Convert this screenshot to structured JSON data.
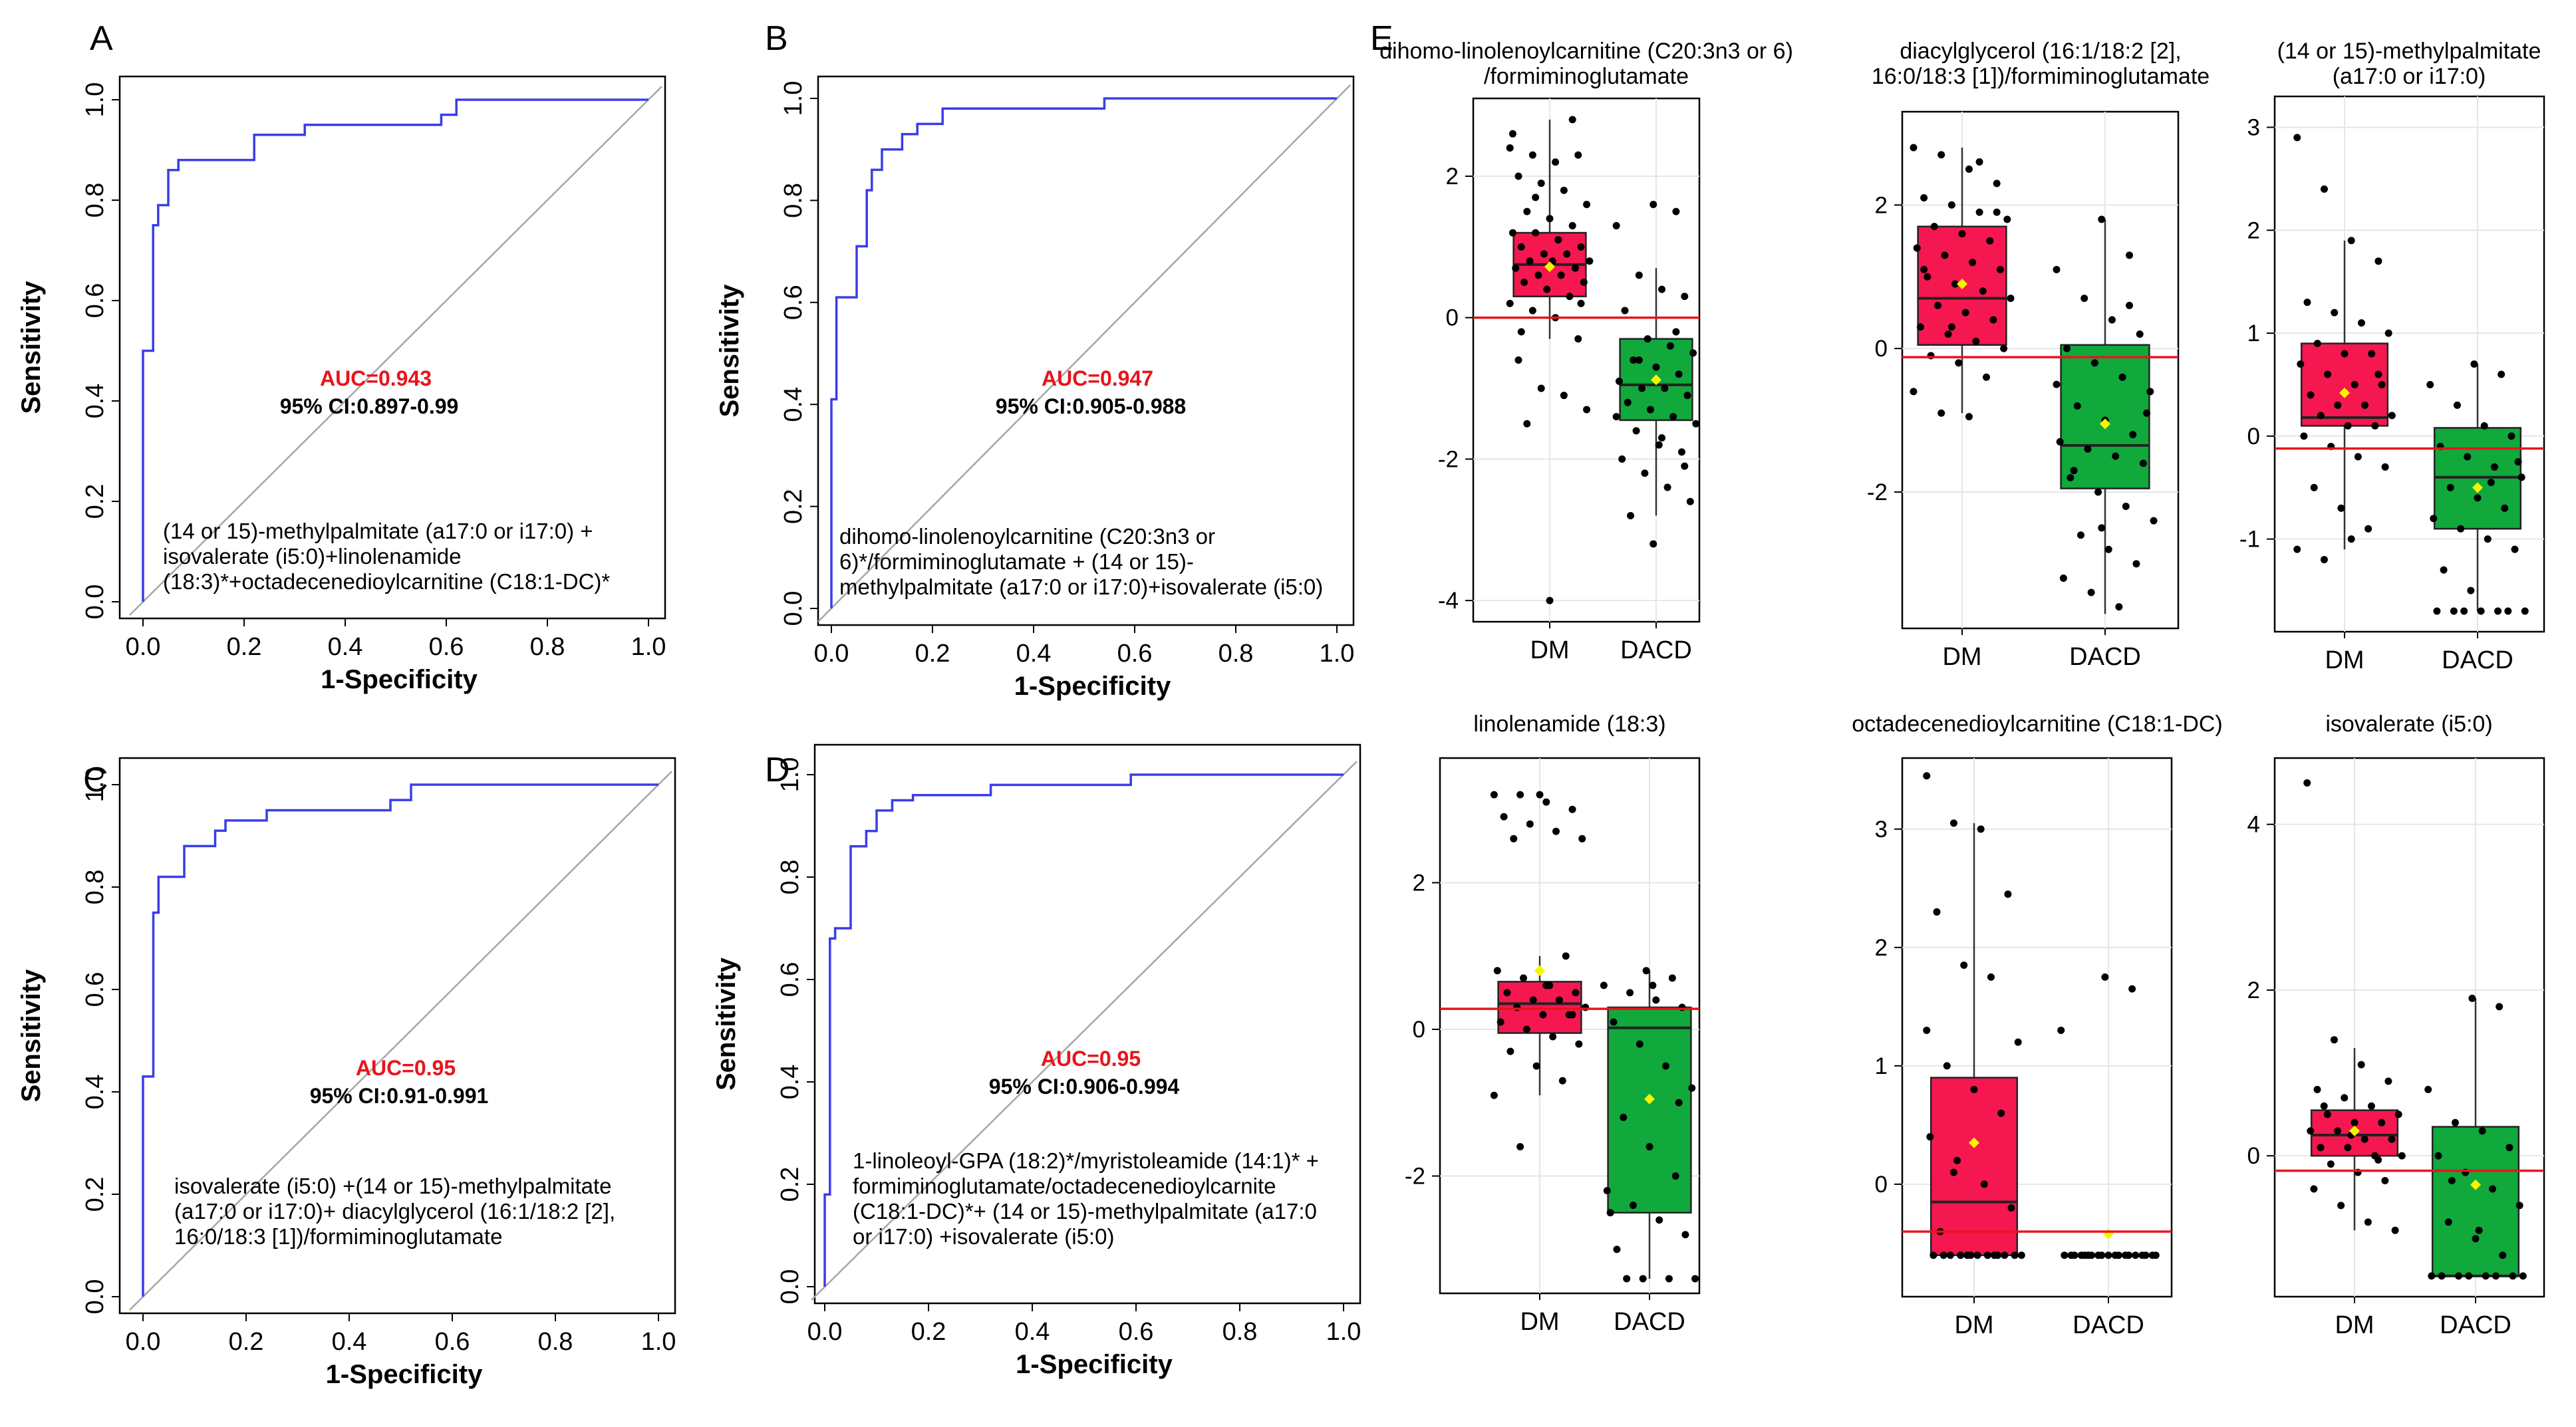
{
  "chart_data": [
    {
      "type": "line",
      "panel": "A",
      "xlabel": "1-Specificity",
      "ylabel": "Sensitivity",
      "xlim": [
        0,
        1
      ],
      "ylim": [
        0,
        1
      ],
      "xticks": [
        "0.0",
        "0.2",
        "0.4",
        "0.6",
        "0.8",
        "1.0"
      ],
      "yticks": [
        "0.0",
        "0.2",
        "0.4",
        "0.6",
        "0.8",
        "1.0"
      ],
      "auc": "AUC=0.943",
      "ci": "95% CI:0.897-0.99",
      "formula": [
        "(14 or 15)-methylpalmitate (a17:0 or i17:0) +",
        "isovalerate (i5:0)+linolenamide",
        "(18:3)*+octadecenedioylcarnitine (C18:1-DC)*"
      ],
      "roc": [
        [
          0,
          0
        ],
        [
          0,
          0.5
        ],
        [
          0.02,
          0.5
        ],
        [
          0.02,
          0.75
        ],
        [
          0.03,
          0.75
        ],
        [
          0.03,
          0.79
        ],
        [
          0.05,
          0.79
        ],
        [
          0.05,
          0.86
        ],
        [
          0.07,
          0.86
        ],
        [
          0.07,
          0.88
        ],
        [
          0.22,
          0.88
        ],
        [
          0.22,
          0.93
        ],
        [
          0.32,
          0.93
        ],
        [
          0.32,
          0.95
        ],
        [
          0.59,
          0.95
        ],
        [
          0.59,
          0.97
        ],
        [
          0.62,
          0.97
        ],
        [
          0.62,
          1.0
        ],
        [
          1,
          1
        ]
      ]
    },
    {
      "type": "line",
      "panel": "B",
      "xlabel": "1-Specificity",
      "ylabel": "Sensitivity",
      "xlim": [
        0,
        1
      ],
      "ylim": [
        0,
        1
      ],
      "xticks": [
        "0.0",
        "0.2",
        "0.4",
        "0.6",
        "0.8",
        "1.0"
      ],
      "yticks": [
        "0.0",
        "0.2",
        "0.4",
        "0.6",
        "0.8",
        "1.0"
      ],
      "auc": "AUC=0.947",
      "ci": "95% CI:0.905-0.988",
      "formula": [
        "dihomo-linolenoylcarnitine (C20:3n3 or",
        "6)*/formiminoglutamate + (14 or 15)-",
        "methylpalmitate (a17:0 or i17:0)+isovalerate (i5:0)"
      ],
      "roc": [
        [
          0,
          0
        ],
        [
          0,
          0.41
        ],
        [
          0.01,
          0.41
        ],
        [
          0.01,
          0.61
        ],
        [
          0.05,
          0.61
        ],
        [
          0.05,
          0.71
        ],
        [
          0.07,
          0.71
        ],
        [
          0.07,
          0.82
        ],
        [
          0.08,
          0.82
        ],
        [
          0.08,
          0.86
        ],
        [
          0.1,
          0.86
        ],
        [
          0.1,
          0.9
        ],
        [
          0.14,
          0.9
        ],
        [
          0.14,
          0.93
        ],
        [
          0.17,
          0.93
        ],
        [
          0.17,
          0.95
        ],
        [
          0.22,
          0.95
        ],
        [
          0.22,
          0.98
        ],
        [
          0.54,
          0.98
        ],
        [
          0.54,
          1.0
        ],
        [
          1,
          1
        ]
      ]
    },
    {
      "type": "line",
      "panel": "C",
      "xlabel": "1-Specificity",
      "ylabel": "Sensitivity",
      "xlim": [
        0,
        1
      ],
      "ylim": [
        0,
        1
      ],
      "xticks": [
        "0.0",
        "0.2",
        "0.4",
        "0.6",
        "0.8",
        "1.0"
      ],
      "yticks": [
        "0.0",
        "0.2",
        "0.4",
        "0.6",
        "0.8",
        "1.0"
      ],
      "auc": "AUC=0.95",
      "ci": "95% CI:0.91-0.991",
      "formula": [
        "isovalerate (i5:0) +(14 or 15)-methylpalmitate",
        "(a17:0 or i17:0)+ diacylglycerol (16:1/18:2 [2],",
        "16:0/18:3 [1])/formiminoglutamate"
      ],
      "roc": [
        [
          0,
          0
        ],
        [
          0,
          0.43
        ],
        [
          0.02,
          0.43
        ],
        [
          0.02,
          0.75
        ],
        [
          0.03,
          0.75
        ],
        [
          0.03,
          0.82
        ],
        [
          0.08,
          0.82
        ],
        [
          0.08,
          0.88
        ],
        [
          0.14,
          0.88
        ],
        [
          0.14,
          0.91
        ],
        [
          0.16,
          0.91
        ],
        [
          0.16,
          0.93
        ],
        [
          0.24,
          0.93
        ],
        [
          0.24,
          0.95
        ],
        [
          0.48,
          0.95
        ],
        [
          0.48,
          0.97
        ],
        [
          0.52,
          0.97
        ],
        [
          0.52,
          1.0
        ],
        [
          1,
          1
        ]
      ]
    },
    {
      "type": "line",
      "panel": "D",
      "xlabel": "1-Specificity",
      "ylabel": "Sensitivity",
      "xlim": [
        0,
        1
      ],
      "ylim": [
        0,
        1
      ],
      "xticks": [
        "0.0",
        "0.2",
        "0.4",
        "0.6",
        "0.8",
        "1.0"
      ],
      "yticks": [
        "0.0",
        "0.2",
        "0.4",
        "0.6",
        "0.8",
        "1.0"
      ],
      "auc": "AUC=0.95",
      "ci": "95% CI:0.906-0.994",
      "formula": [
        "1-linoleoyl-GPA (18:2)*/myristoleamide (14:1)* +",
        "formiminoglutamate/octadecenedioylcarnite",
        "(C18:1-DC)*+ (14 or 15)-methylpalmitate (a17:0",
        "or i17:0) +isovalerate (i5:0)"
      ],
      "roc": [
        [
          0,
          0
        ],
        [
          0,
          0.18
        ],
        [
          0.01,
          0.18
        ],
        [
          0.01,
          0.68
        ],
        [
          0.02,
          0.68
        ],
        [
          0.02,
          0.7
        ],
        [
          0.05,
          0.7
        ],
        [
          0.05,
          0.86
        ],
        [
          0.08,
          0.86
        ],
        [
          0.08,
          0.89
        ],
        [
          0.1,
          0.89
        ],
        [
          0.1,
          0.93
        ],
        [
          0.13,
          0.93
        ],
        [
          0.13,
          0.95
        ],
        [
          0.17,
          0.95
        ],
        [
          0.17,
          0.96
        ],
        [
          0.32,
          0.96
        ],
        [
          0.32,
          0.98
        ],
        [
          0.59,
          0.98
        ],
        [
          0.59,
          1.0
        ],
        [
          1,
          1
        ]
      ]
    },
    {
      "type": "box",
      "panel": "E",
      "title": [
        "dihomo-linolenoylcarnitine (C20:3n3 or 6)",
        "/formiminoglutamate"
      ],
      "categories": [
        "DM",
        "DACD"
      ],
      "ylim": [
        -4.3,
        3.1
      ],
      "yticks": [
        -4,
        -2,
        0,
        2
      ],
      "threshold": 0,
      "boxes": [
        {
          "q1": 0.3,
          "median": 0.75,
          "q3": 1.2,
          "lo": -0.3,
          "hi": 2.8,
          "mean": 0.72,
          "color": "#f5174f",
          "points": [
            2.4,
            2.3,
            2.2,
            2.3,
            2.0,
            1.9,
            1.8,
            1.6,
            1.5,
            1.4,
            1.3,
            1.2,
            1.2,
            1.1,
            1.0,
            1.0,
            0.9,
            0.9,
            0.8,
            0.8,
            0.8,
            0.7,
            0.7,
            0.6,
            0.6,
            0.5,
            0.5,
            0.4,
            0.3,
            0.2,
            0.1,
            0.0,
            -0.3,
            -0.6,
            -1.0,
            -1.1,
            -1.3,
            -1.5,
            -4.0,
            2.8,
            2.6,
            1.7,
            1.1,
            0.2,
            -0.2
          ]
        },
        {
          "q1": -1.45,
          "median": -0.95,
          "q3": -0.3,
          "lo": -2.8,
          "hi": 0.7,
          "mean": -0.88,
          "color": "#11a83c",
          "points": [
            1.6,
            1.5,
            1.3,
            0.6,
            0.4,
            0.3,
            0.1,
            -0.3,
            -0.4,
            -0.5,
            -0.6,
            -0.7,
            -0.8,
            -0.9,
            -1.0,
            -1.0,
            -1.1,
            -1.2,
            -1.3,
            -1.4,
            -1.5,
            -1.6,
            -1.8,
            -1.9,
            -2.0,
            -2.2,
            -2.4,
            -2.6,
            -2.8,
            -3.2,
            -0.2,
            -1.4,
            -0.6,
            -1.7,
            -2.1
          ]
        }
      ]
    },
    {
      "type": "box",
      "panel": "E",
      "title": [
        "diacylglycerol (16:1/18:2 [2],",
        "16:0/18:3 [1])/formiminoglutamate"
      ],
      "categories": [
        "DM",
        "DACD"
      ],
      "ylim": [
        -3.9,
        3.3
      ],
      "yticks": [
        -2,
        0,
        2
      ],
      "threshold": -0.12,
      "boxes": [
        {
          "q1": 0.05,
          "median": 0.7,
          "q3": 1.7,
          "lo": -0.9,
          "hi": 2.8,
          "mean": 0.9,
          "color": "#f5174f",
          "points": [
            2.8,
            2.7,
            2.5,
            2.3,
            2.1,
            2.0,
            1.9,
            1.8,
            1.7,
            1.6,
            1.5,
            1.4,
            1.3,
            1.2,
            1.1,
            1.0,
            0.9,
            0.8,
            0.7,
            0.6,
            0.5,
            0.4,
            0.3,
            0.2,
            0.1,
            0.0,
            -0.1,
            -0.2,
            -0.4,
            -0.6,
            -0.9,
            -0.95,
            1.9,
            1.1,
            0.3,
            2.6
          ]
        },
        {
          "q1": -1.95,
          "median": -1.35,
          "q3": 0.05,
          "lo": -3.7,
          "hi": 1.8,
          "mean": -1.05,
          "color": "#11a83c",
          "points": [
            1.8,
            1.3,
            1.1,
            0.7,
            0.4,
            0.2,
            0.0,
            -0.2,
            -0.4,
            -0.6,
            -0.8,
            -1.0,
            -1.2,
            -1.3,
            -1.4,
            -1.5,
            -1.6,
            -1.8,
            -2.0,
            -2.2,
            -2.4,
            -2.6,
            -2.8,
            -3.0,
            -3.2,
            -3.4,
            -3.6,
            -0.9,
            -1.7,
            -2.5,
            0.6,
            -0.5
          ]
        }
      ]
    },
    {
      "type": "box",
      "panel": "E",
      "title": [
        "(14 or 15)-methylpalmitate",
        "(a17:0 or i17:0)"
      ],
      "categories": [
        "DM",
        "DACD"
      ],
      "ylim": [
        -1.9,
        3.3
      ],
      "yticks": [
        -1,
        0,
        1,
        2,
        3
      ],
      "threshold": -0.12,
      "boxes": [
        {
          "q1": 0.1,
          "median": 0.18,
          "q3": 0.9,
          "lo": -1.1,
          "hi": 1.9,
          "mean": 0.42,
          "color": "#f5174f",
          "points": [
            2.9,
            2.4,
            1.9,
            1.7,
            1.3,
            1.2,
            1.1,
            1.0,
            0.9,
            0.8,
            0.8,
            0.7,
            0.6,
            0.5,
            0.5,
            0.4,
            0.3,
            0.3,
            0.2,
            0.2,
            0.1,
            0.1,
            0.0,
            -0.1,
            -0.2,
            -0.3,
            -0.5,
            -0.7,
            -0.9,
            -1.1,
            -1.2,
            -1.0,
            0.6
          ]
        },
        {
          "q1": -0.9,
          "median": -0.4,
          "q3": 0.08,
          "lo": -1.7,
          "hi": 0.7,
          "mean": -0.5,
          "color": "#11a83c",
          "points": [
            0.7,
            0.6,
            0.5,
            0.3,
            0.1,
            0.0,
            -0.1,
            -0.2,
            -0.3,
            -0.4,
            -0.5,
            -0.6,
            -0.7,
            -0.8,
            -0.9,
            -1.0,
            -1.1,
            -1.3,
            -1.5,
            -1.7,
            -1.7,
            -1.7,
            -1.7,
            -1.7,
            -1.7,
            -1.7,
            -0.45,
            -0.25
          ]
        }
      ]
    },
    {
      "type": "box",
      "panel": "E",
      "title": [
        "linolenamide (18:3)"
      ],
      "categories": [
        "DM",
        "DACD"
      ],
      "ylim": [
        -3.6,
        3.7
      ],
      "yticks": [
        -2,
        0,
        2
      ],
      "threshold": 0.28,
      "boxes": [
        {
          "q1": -0.05,
          "median": 0.35,
          "q3": 0.65,
          "lo": -0.9,
          "hi": 1.0,
          "mean": 0.8,
          "color": "#f5174f",
          "points": [
            3.2,
            3.2,
            3.1,
            3.0,
            2.9,
            2.8,
            2.7,
            2.6,
            2.6,
            3.2,
            1.0,
            0.8,
            0.7,
            0.6,
            0.5,
            0.5,
            0.4,
            0.4,
            0.3,
            0.3,
            0.2,
            0.2,
            0.1,
            0.0,
            -0.1,
            -0.2,
            -0.3,
            -0.5,
            -0.7,
            -0.9,
            -1.6,
            0.6,
            0.2
          ]
        },
        {
          "q1": -2.5,
          "median": 0.02,
          "q3": 0.3,
          "lo": -3.4,
          "hi": 0.8,
          "mean": -0.95,
          "color": "#11a83c",
          "points": [
            0.8,
            0.7,
            0.6,
            0.5,
            0.4,
            0.3,
            0.1,
            -0.2,
            -0.5,
            -0.8,
            -1.2,
            -1.6,
            -2.0,
            -2.2,
            -2.4,
            -2.6,
            -2.8,
            -3.0,
            -3.4,
            -3.4,
            -3.4,
            -3.4,
            0.6,
            -1.0,
            -2.5
          ]
        }
      ]
    },
    {
      "type": "box",
      "panel": "E",
      "title": [
        "octadecenedioylcarnitine (C18:1-DC)"
      ],
      "categories": [
        "DM",
        "DACD"
      ],
      "ylim": [
        -0.95,
        3.6
      ],
      "yticks": [
        0,
        1,
        2,
        3
      ],
      "threshold": -0.4,
      "boxes": [
        {
          "q1": -0.6,
          "median": -0.15,
          "q3": 0.9,
          "lo": -0.6,
          "hi": 3.05,
          "mean": 0.35,
          "color": "#f5174f",
          "points": [
            3.45,
            3.05,
            3.0,
            2.45,
            2.3,
            1.85,
            1.75,
            1.2,
            1.0,
            0.8,
            0.6,
            0.4,
            0.2,
            0.0,
            -0.2,
            -0.4,
            -0.6,
            -0.6,
            -0.6,
            -0.6,
            -0.6,
            -0.6,
            -0.6,
            -0.6,
            -0.6,
            -0.6,
            -0.6,
            -0.6,
            -0.6,
            1.3,
            0.1
          ]
        },
        {
          "q1": -0.6,
          "median": -0.6,
          "q3": -0.6,
          "lo": -0.6,
          "hi": -0.6,
          "mean": -0.42,
          "color": "#11a83c",
          "points": [
            1.75,
            1.65,
            1.3,
            -0.6,
            -0.6,
            -0.6,
            -0.6,
            -0.6,
            -0.6,
            -0.6,
            -0.6,
            -0.6,
            -0.6,
            -0.6,
            -0.6,
            -0.6,
            -0.6,
            -0.6,
            -0.6,
            -0.6,
            -0.6,
            -0.6
          ]
        }
      ]
    },
    {
      "type": "box",
      "panel": "E",
      "title": [
        "isovalerate (i5:0)"
      ],
      "categories": [
        "DM",
        "DACD"
      ],
      "ylim": [
        -1.7,
        4.8
      ],
      "yticks": [
        0,
        2,
        4
      ],
      "threshold": -0.18,
      "boxes": [
        {
          "q1": 0.0,
          "median": 0.25,
          "q3": 0.55,
          "lo": -0.9,
          "hi": 1.3,
          "mean": 0.3,
          "color": "#f5174f",
          "points": [
            4.5,
            1.4,
            1.1,
            0.9,
            0.8,
            0.7,
            0.6,
            0.5,
            0.5,
            0.4,
            0.4,
            0.3,
            0.3,
            0.2,
            0.2,
            0.1,
            0.1,
            0.0,
            0.0,
            -0.1,
            -0.2,
            -0.3,
            -0.4,
            -0.6,
            -0.8,
            -0.9,
            0.6,
            0.25,
            -0.05
          ]
        },
        {
          "q1": -1.45,
          "median": -1.45,
          "q3": 0.35,
          "lo": -1.45,
          "hi": 1.9,
          "mean": -0.35,
          "color": "#11a83c",
          "points": [
            1.9,
            1.8,
            0.8,
            0.4,
            0.3,
            0.1,
            0.0,
            -0.2,
            -0.4,
            -0.6,
            -0.8,
            -1.0,
            -1.2,
            -1.45,
            -1.45,
            -1.45,
            -1.45,
            -1.45,
            -1.45,
            -1.45,
            -1.45,
            -0.3,
            -0.9
          ]
        }
      ]
    }
  ],
  "colors": {
    "roc_line": "#3a3de8",
    "diagonal": "#a6a6a6",
    "auc_text": "#e8141c",
    "dm_box": "#f5174f",
    "dacd_box": "#11a83c",
    "threshold_line": "#e8141c",
    "mean_marker": "#f5f500"
  }
}
